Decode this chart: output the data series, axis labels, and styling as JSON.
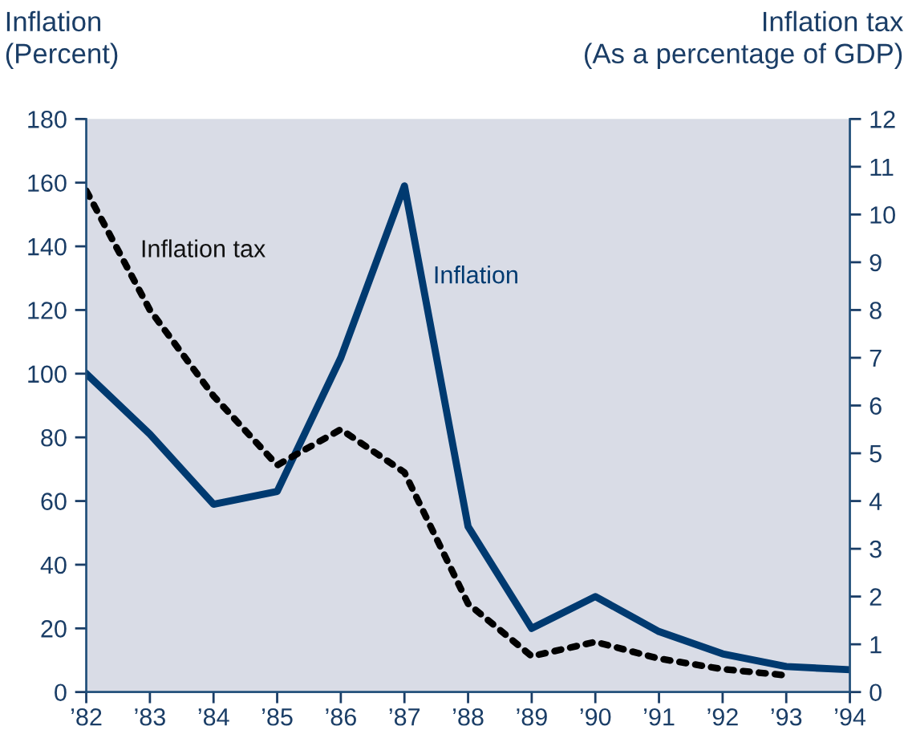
{
  "chart_data": {
    "type": "line",
    "ylabel": "Inflation\n(Percent)",
    "y2label": "Inflation tax\n(As a percentage of GDP)",
    "categories": [
      "’82",
      "’83",
      "’84",
      "’85",
      "’86",
      "’87",
      "’88",
      "’89",
      "’90",
      "’91",
      "’92",
      "’93",
      "’94"
    ],
    "series": [
      {
        "name": "Inflation",
        "color": "#003a70",
        "line_style": "solid",
        "values": [
          100,
          81,
          59,
          63,
          105,
          159,
          52,
          20,
          30,
          19,
          12,
          8,
          7
        ]
      },
      {
        "name": "Inflation tax",
        "color": "#000000",
        "line_style": "dotted",
        "axis": "y2",
        "values": [
          10.5,
          8.0,
          6.2,
          4.75,
          5.5,
          4.6,
          1.85,
          0.75,
          1.05,
          0.7,
          0.48,
          0.35,
          null
        ]
      }
    ],
    "ylim": [
      0,
      180
    ],
    "yticks": [
      0,
      20,
      40,
      60,
      80,
      100,
      120,
      140,
      160,
      180
    ],
    "y2lim": [
      0,
      12
    ],
    "y2ticks": [
      0,
      1,
      2,
      3,
      4,
      5,
      6,
      7,
      8,
      9,
      10,
      11,
      12
    ],
    "grid": false,
    "legend": false,
    "marker": "none"
  }
}
